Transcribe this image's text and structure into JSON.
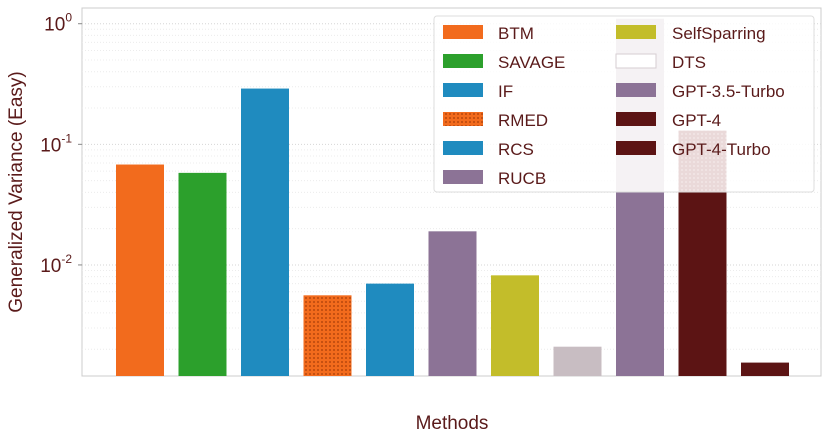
{
  "chart_data": {
    "type": "bar",
    "title": "",
    "xlabel": "Methods",
    "ylabel": "Generalized Variance (Easy)",
    "yscale": "log",
    "ylim": [
      0.0012,
      1.35
    ],
    "grid": true,
    "legend_position": "top-right",
    "y_ticks": [
      {
        "value": 1,
        "base": "10",
        "exp": "0"
      },
      {
        "value": 0.1,
        "base": "10",
        "exp": "-1"
      },
      {
        "value": 0.01,
        "base": "10",
        "exp": "-2"
      }
    ],
    "series": [
      {
        "name": "BTM",
        "value": 0.068,
        "color": "#f26b1d",
        "pattern": "solid"
      },
      {
        "name": "SAVAGE",
        "value": 0.058,
        "color": "#2ca02c",
        "pattern": "solid"
      },
      {
        "name": "IF",
        "value": 0.29,
        "color": "#1f8bbf",
        "pattern": "solid"
      },
      {
        "name": "RMED",
        "value": 0.0056,
        "color": "#f26b1d",
        "pattern": "dotted"
      },
      {
        "name": "RCS",
        "value": 0.007,
        "color": "#1f8bbf",
        "pattern": "solid"
      },
      {
        "name": "RUCB",
        "value": 0.019,
        "color": "#8c7396",
        "pattern": "solid"
      },
      {
        "name": "SelfSparring",
        "value": 0.0082,
        "color": "#c3bd2a",
        "pattern": "solid"
      },
      {
        "name": "DTS",
        "value": 0.0021,
        "color": "#c8bdc2",
        "pattern": "solid"
      },
      {
        "name": "GPT-3.5-Turbo",
        "value": 1.1,
        "value_lower": 0.04,
        "color": "#8c7396",
        "upper_color": "#c6b9c4",
        "pattern": "solid"
      },
      {
        "name": "GPT-4",
        "value": 0.13,
        "value_lower": 0.04,
        "color": "#5c1414",
        "upper_color": "#8a2e2e",
        "pattern": "dotted"
      },
      {
        "name": "GPT-4-Turbo",
        "value": 0.00155,
        "color": "#5c1414",
        "pattern": "solid"
      }
    ]
  }
}
